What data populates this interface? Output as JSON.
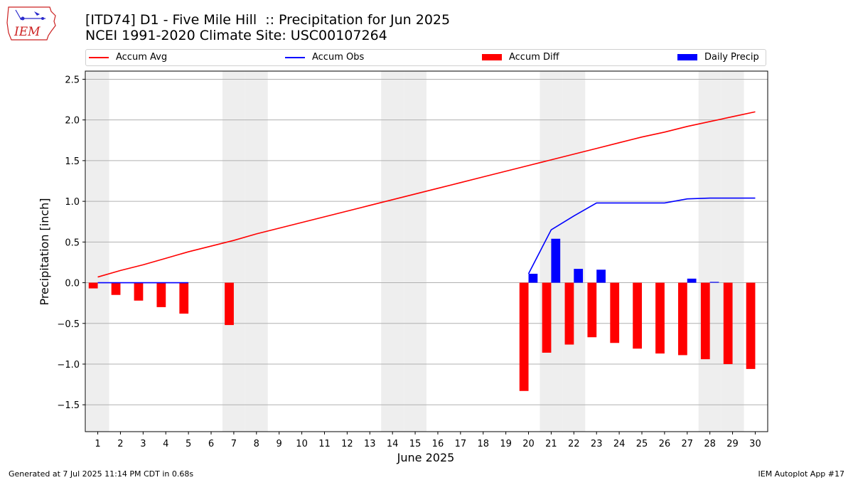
{
  "header": {
    "title_line1": "[ITD74] D1 - Five Mile Hill  :: Precipitation for Jun 2025",
    "title_line2": "NCEI 1991-2020 Climate Site: USC00107264",
    "logo_text": "IEM"
  },
  "legend": {
    "items": [
      {
        "label": "Accum Avg",
        "kind": "line",
        "color": "#ff0000"
      },
      {
        "label": "Accum Obs",
        "kind": "line",
        "color": "#0000ff"
      },
      {
        "label": "Accum Diff",
        "kind": "patch",
        "color": "#ff0000"
      },
      {
        "label": "Daily Precip",
        "kind": "patch",
        "color": "#0000ff"
      }
    ]
  },
  "footer": {
    "generated": "Generated at 7 Jul 2025 11:14 PM CDT in 0.68s",
    "app": "IEM Autoplot App #17"
  },
  "chart_data": {
    "type": "bar",
    "xlabel": "June 2025",
    "ylabel": "Precipitation [inch]",
    "ylim": [
      -1.83,
      2.6
    ],
    "yticks": [
      -1.5,
      -1.0,
      -0.5,
      0.0,
      0.5,
      1.0,
      1.5,
      2.0,
      2.5
    ],
    "ytick_labels": [
      "−1.5",
      "−1.0",
      "−0.5",
      "0.0",
      "0.5",
      "1.0",
      "1.5",
      "2.0",
      "2.5"
    ],
    "grid": true,
    "legend_position": "top",
    "weekend_shading_days": [
      1,
      7,
      8,
      14,
      15,
      21,
      22,
      28,
      29
    ],
    "days": [
      1,
      2,
      3,
      4,
      5,
      6,
      7,
      8,
      9,
      10,
      11,
      12,
      13,
      14,
      15,
      16,
      17,
      18,
      19,
      20,
      21,
      22,
      23,
      24,
      25,
      26,
      27,
      28,
      29,
      30
    ],
    "series": [
      {
        "name": "Accum Avg",
        "kind": "line",
        "color": "#ff0000",
        "values": [
          0.07,
          0.15,
          0.22,
          0.3,
          0.38,
          0.45,
          0.52,
          0.6,
          0.67,
          0.74,
          0.81,
          0.88,
          0.95,
          1.02,
          1.09,
          1.16,
          1.23,
          1.3,
          1.37,
          1.44,
          1.51,
          1.58,
          1.65,
          1.72,
          1.79,
          1.85,
          1.92,
          1.98,
          2.04,
          2.1
        ]
      },
      {
        "name": "Accum Obs",
        "kind": "line",
        "color": "#0000ff",
        "values": [
          0.0,
          0.0,
          0.0,
          0.0,
          0.0,
          null,
          null,
          null,
          null,
          null,
          null,
          null,
          null,
          null,
          null,
          null,
          null,
          null,
          null,
          0.11,
          0.65,
          0.82,
          0.98,
          0.98,
          0.98,
          0.98,
          1.03,
          1.04,
          1.04,
          1.04
        ]
      },
      {
        "name": "Accum Diff",
        "kind": "bar",
        "color": "#ff0000",
        "values": [
          -0.07,
          -0.15,
          -0.22,
          -0.3,
          -0.38,
          null,
          -0.52,
          null,
          null,
          null,
          null,
          null,
          null,
          null,
          null,
          null,
          null,
          null,
          null,
          -1.33,
          -0.86,
          -0.76,
          -0.67,
          -0.74,
          -0.81,
          -0.87,
          -0.89,
          -0.94,
          -1.0,
          -1.06
        ]
      },
      {
        "name": "Daily Precip",
        "kind": "bar",
        "color": "#0000ff",
        "values": [
          0,
          0,
          0,
          0,
          0,
          null,
          null,
          null,
          null,
          null,
          null,
          null,
          null,
          null,
          null,
          null,
          null,
          null,
          null,
          0.11,
          0.54,
          0.17,
          0.16,
          0,
          0,
          0,
          0.05,
          0.01,
          0,
          0
        ]
      }
    ]
  }
}
